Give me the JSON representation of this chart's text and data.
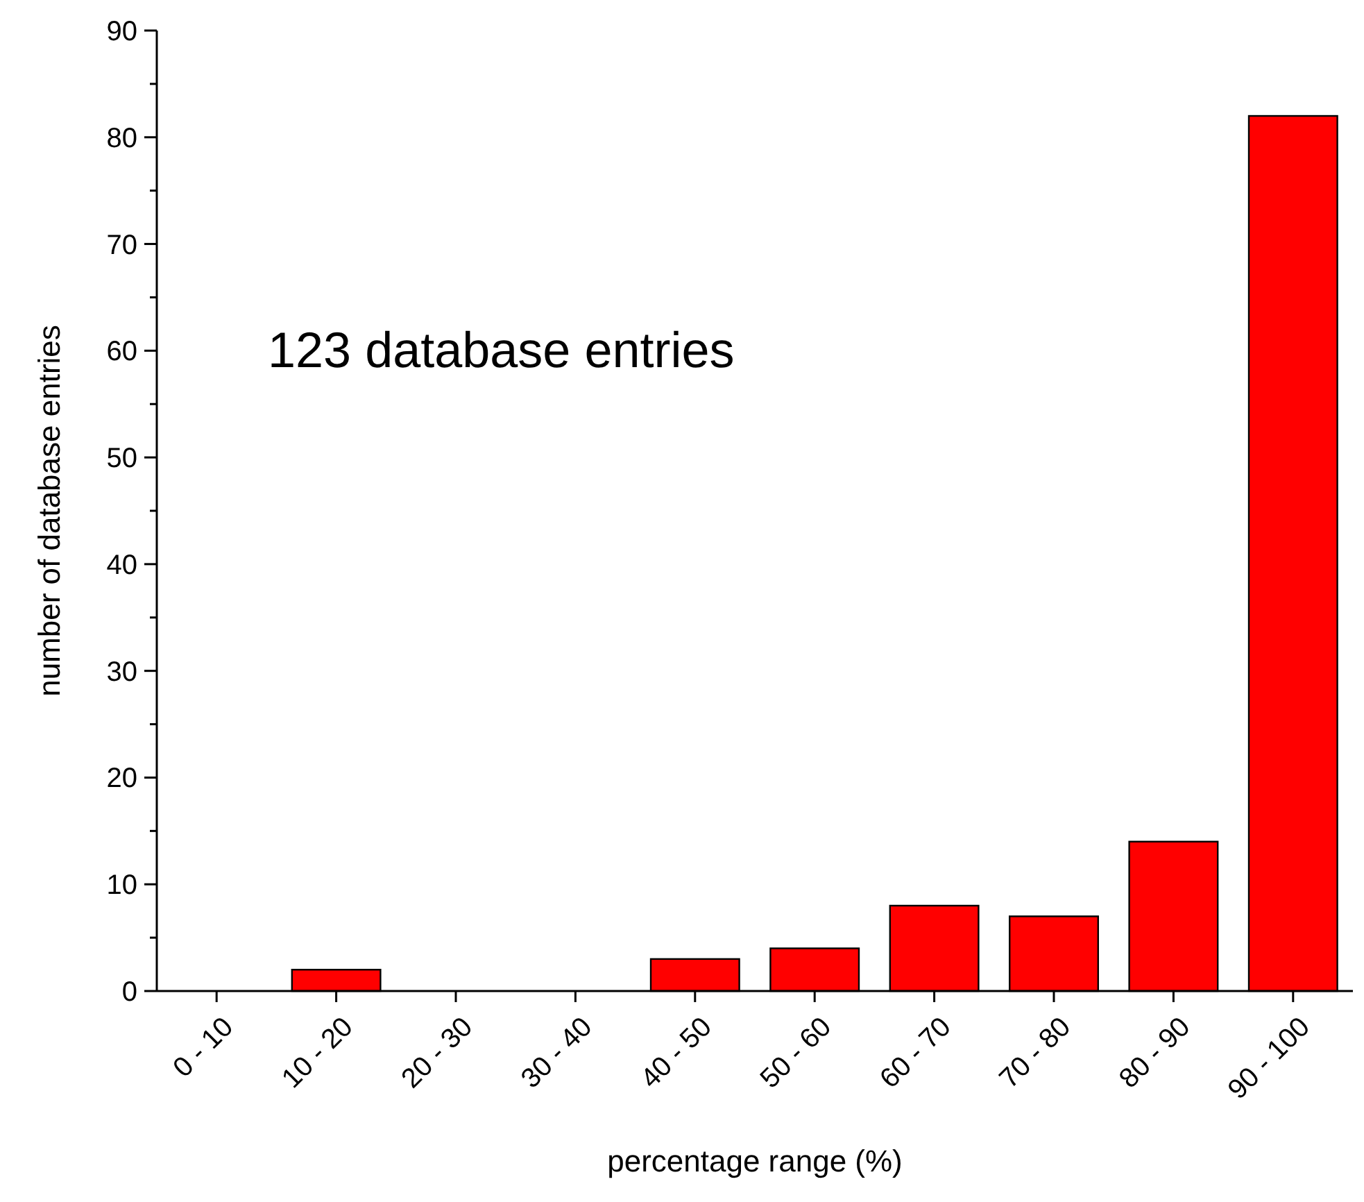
{
  "chart_data": {
    "type": "bar",
    "xlabel": "percentage range (%)",
    "ylabel": "number of database entries",
    "categories": [
      "0 - 10",
      "10 - 20",
      "20 - 30",
      "30 - 40",
      "40 - 50",
      "50 - 60",
      "60 - 70",
      "70 - 80",
      "80 - 90",
      "90 - 100"
    ],
    "values": [
      0,
      2,
      0,
      0,
      3,
      4,
      8,
      7,
      14,
      82
    ],
    "color": "#ff0000",
    "ylim": [
      0,
      90
    ],
    "yticks": [
      0,
      {
        "value": 5,
        "label": null
      },
      10,
      {
        "value": 15,
        "label": null
      },
      20,
      {
        "value": 25,
        "label": null
      },
      30,
      {
        "value": 35,
        "label": null
      },
      40,
      {
        "value": 45,
        "label": null
      },
      50,
      {
        "value": 55,
        "label": null
      },
      60,
      {
        "value": 65,
        "label": null
      },
      70,
      {
        "value": 75,
        "label": null
      },
      80,
      {
        "value": 85,
        "label": null
      },
      90
    ],
    "annotations": [
      "123 database entries"
    ]
  }
}
